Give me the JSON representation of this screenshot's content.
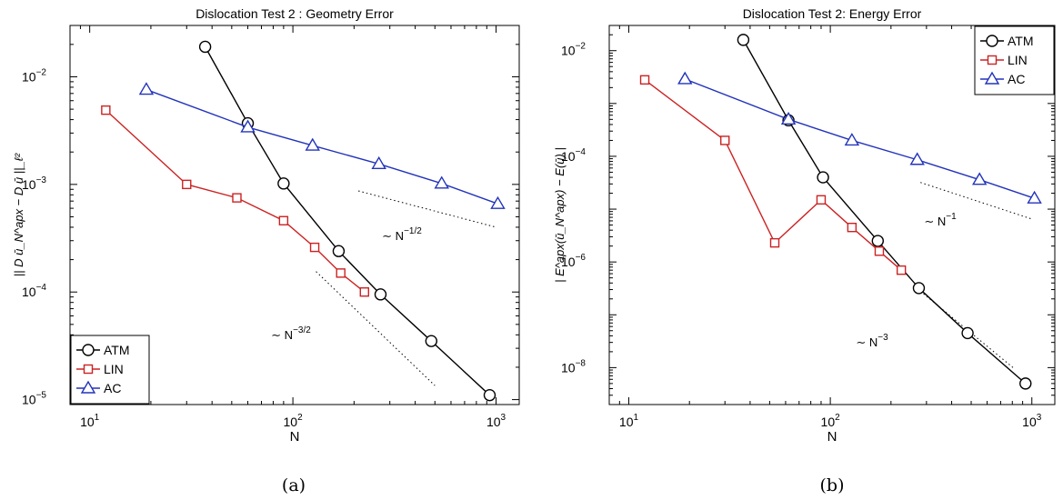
{
  "chart_data": [
    {
      "type": "line",
      "title": "Dislocation Test 2 : Geometry Error",
      "xlabel": "N",
      "ylabel": "|| D ū_N^apx − D ū ||_ℓ²",
      "xscale": "log",
      "yscale": "log",
      "xlim": [
        8,
        1300
      ],
      "ylim": [
        9e-06,
        0.03
      ],
      "grid": false,
      "legend_position": "bottom-left",
      "caption": "(a)",
      "x_ticks": [
        {
          "value": 10,
          "base": "10",
          "exp": "1"
        },
        {
          "value": 100,
          "base": "10",
          "exp": "2"
        },
        {
          "value": 1000,
          "base": "10",
          "exp": "3"
        }
      ],
      "y_ticks": [
        {
          "value": 1e-05,
          "base": "10",
          "exp": "−5"
        },
        {
          "value": 0.0001,
          "base": "10",
          "exp": "−4"
        },
        {
          "value": 0.001,
          "base": "10",
          "exp": "−3"
        },
        {
          "value": 0.01,
          "base": "10",
          "exp": "−2"
        }
      ],
      "series": [
        {
          "name": "ATM",
          "color": "#000000",
          "marker": "circle",
          "x": [
            37,
            60,
            90,
            168,
            270,
            480,
            930
          ],
          "y": [
            0.019,
            0.0037,
            0.00102,
            0.00024,
            9.5e-05,
            3.5e-05,
            1.1e-05
          ]
        },
        {
          "name": "LIN",
          "color": "#cc2222",
          "marker": "square",
          "x": [
            12,
            30,
            53,
            90,
            128,
            172,
            225
          ],
          "y": [
            0.0049,
            0.001,
            0.00075,
            0.00046,
            0.00026,
            0.00015,
            0.0001
          ]
        },
        {
          "name": "AC",
          "color": "#2233bb",
          "marker": "triangle",
          "x": [
            19,
            60,
            125,
            265,
            540,
            1020
          ],
          "y": [
            0.0076,
            0.0034,
            0.0023,
            0.00155,
            0.00102,
            0.00066
          ]
        }
      ],
      "slope_guides": [
        {
          "label_prefix": "∼ N",
          "label_exp": "−1/2",
          "x": [
            210,
            1000
          ],
          "y": [
            0.00087,
            0.0004
          ]
        },
        {
          "label_prefix": "∼ N",
          "label_exp": "−3/2",
          "x": [
            130,
            500
          ],
          "y": [
            0.000155,
            1.35e-05
          ]
        }
      ]
    },
    {
      "type": "line",
      "title": "Dislocation Test 2: Energy Error",
      "xlabel": "N",
      "ylabel": "| E^apx(ū_N^apx) − E(ū) |",
      "xscale": "log",
      "yscale": "log",
      "xlim": [
        8,
        1300
      ],
      "ylim": [
        2e-09,
        0.03
      ],
      "grid": false,
      "legend_position": "top-right",
      "caption": "(b)",
      "x_ticks": [
        {
          "value": 10,
          "base": "10",
          "exp": "1"
        },
        {
          "value": 100,
          "base": "10",
          "exp": "2"
        },
        {
          "value": 1000,
          "base": "10",
          "exp": "3"
        }
      ],
      "y_ticks": [
        {
          "value": 1e-08,
          "base": "10",
          "exp": "−8"
        },
        {
          "value": 1e-06,
          "base": "10",
          "exp": "−6"
        },
        {
          "value": 0.0001,
          "base": "10",
          "exp": "−4"
        },
        {
          "value": 0.01,
          "base": "10",
          "exp": "−2"
        }
      ],
      "series": [
        {
          "name": "ATM",
          "color": "#000000",
          "marker": "circle",
          "x": [
            37,
            62,
            92,
            172,
            275,
            480,
            930
          ],
          "y": [
            0.016,
            0.00048,
            4e-05,
            2.5e-06,
            3.2e-07,
            4.5e-08,
            5e-09
          ]
        },
        {
          "name": "LIN",
          "color": "#cc2222",
          "marker": "square",
          "x": [
            12,
            30,
            53,
            90,
            128,
            175,
            225
          ],
          "y": [
            0.0028,
            0.0002,
            2.3e-06,
            1.5e-05,
            4.5e-06,
            1.6e-06,
            7e-07
          ]
        },
        {
          "name": "AC",
          "color": "#2233bb",
          "marker": "triangle",
          "x": [
            19,
            62,
            128,
            270,
            550,
            1030
          ],
          "y": [
            0.0029,
            0.0005,
            0.0002,
            8.6e-05,
            3.6e-05,
            1.6e-05
          ]
        }
      ],
      "slope_guides": [
        {
          "label_prefix": "∼ N",
          "label_exp": "−1",
          "x": [
            280,
            1000
          ],
          "y": [
            3.2e-05,
            6.5e-06
          ]
        },
        {
          "label_prefix": "∼ N",
          "label_exp": "−3",
          "x": [
            290,
            820
          ],
          "y": [
            2.5e-07,
            9.5e-09
          ]
        }
      ]
    }
  ]
}
